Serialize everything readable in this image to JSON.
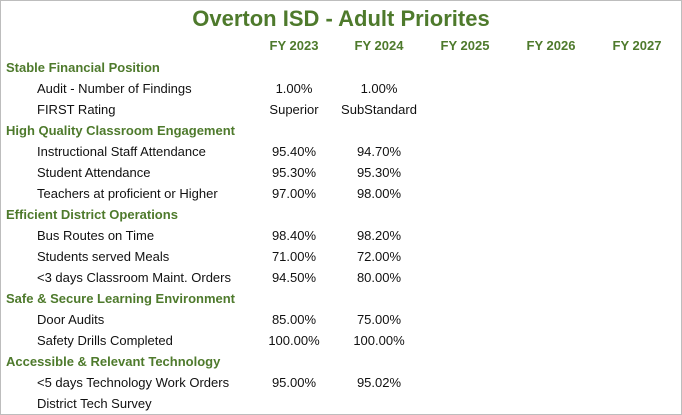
{
  "title": "Overton ISD - Adult Priorites",
  "years": [
    "FY 2023",
    "FY 2024",
    "FY 2025",
    "FY 2026",
    "FY 2027"
  ],
  "sections": [
    {
      "label": "Stable Financial Position",
      "metrics": [
        {
          "label": "Audit - Number of Findings",
          "values": [
            "1.00%",
            "1.00%"
          ]
        },
        {
          "label": "FIRST Rating",
          "values": [
            "Superior",
            "SubStandard"
          ]
        }
      ]
    },
    {
      "label": "High Quality Classroom Engagement",
      "metrics": [
        {
          "label": "Instructional Staff Attendance",
          "values": [
            "95.40%",
            "94.70%"
          ]
        },
        {
          "label": "Student Attendance",
          "values": [
            "95.30%",
            "95.30%"
          ]
        },
        {
          "label": "Teachers at proficient or Higher",
          "values": [
            "97.00%",
            "98.00%"
          ]
        }
      ]
    },
    {
      "label": "Efficient District Operations",
      "metrics": [
        {
          "label": "Bus Routes on Time",
          "values": [
            "98.40%",
            "98.20%"
          ]
        },
        {
          "label": "Students served Meals",
          "values": [
            "71.00%",
            "72.00%"
          ]
        },
        {
          "label": "<3 days Classroom Maint. Orders",
          "values": [
            "94.50%",
            "80.00%"
          ]
        }
      ]
    },
    {
      "label": "Safe & Secure Learning Environment",
      "metrics": [
        {
          "label": "Door Audits",
          "values": [
            "85.00%",
            "75.00%"
          ]
        },
        {
          "label": "Safety Drills Completed",
          "values": [
            "100.00%",
            "100.00%"
          ]
        }
      ]
    },
    {
      "label": "Accessible & Relevant Technology",
      "metrics": [
        {
          "label": "<5 days Technology Work Orders",
          "values": [
            "95.00%",
            "95.02%"
          ]
        },
        {
          "label": "District Tech Survey",
          "values": []
        }
      ]
    }
  ]
}
